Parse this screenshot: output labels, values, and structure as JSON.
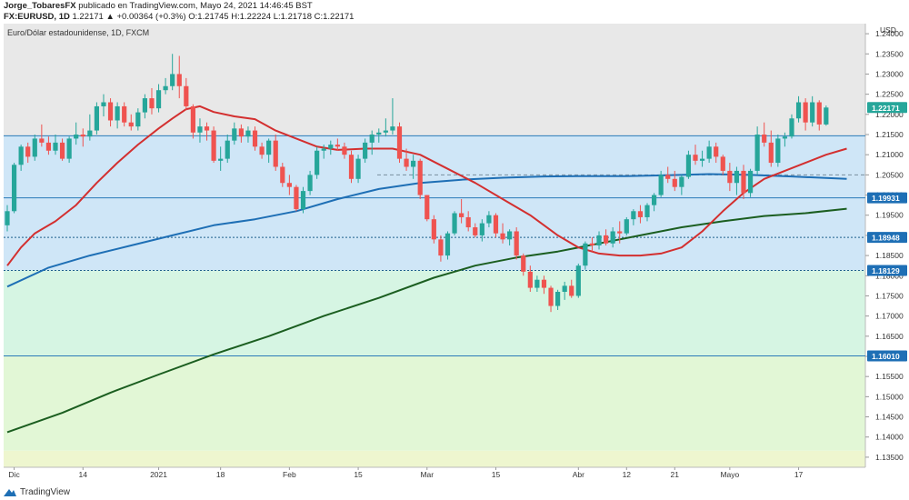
{
  "header": {
    "author": "Jorge_TobaresFX",
    "published": "publicado en TradingView.com, Mayo 24, 2021 14:46:45 BST",
    "symbol": "FX:EURUSD, 1D",
    "change": "1.22171  ▲ +0.00364 (+0.3%)",
    "open_label": "O:",
    "open": "1.21745",
    "high_label": "H:",
    "high": "1.22224",
    "low_label": "L:",
    "low": "1.21718",
    "close_label": "C:",
    "close": "1.22171"
  },
  "footer": {
    "brand": "TradingView"
  },
  "colors": {
    "bull": "#26a69a",
    "bear": "#ef5350",
    "ma_fast": "#d32f2f",
    "ma_mid": "#1e6fb5",
    "ma_slow": "#1b5e20",
    "zone_blue": "#cfe6f7",
    "zone_green": "#d6f5e3",
    "zone_green2": "#e2f7d6",
    "zone_yellow": "#eef6cf",
    "top_gray": "#e8e8e8"
  },
  "chart_data": {
    "type": "candlestick",
    "title": "Euro/Dólar estadounidense, 1D, FXCM",
    "currency": "USD",
    "ylim": [
      1.1325,
      1.2425
    ],
    "y_ticks": [
      "1.24000",
      "1.23500",
      "1.23000",
      "1.22500",
      "1.22000",
      "1.21500",
      "1.21000",
      "1.20500",
      "1.20000",
      "1.19500",
      "1.19000",
      "1.18500",
      "1.18000",
      "1.17500",
      "1.17000",
      "1.16500",
      "1.16000",
      "1.15500",
      "1.15000",
      "1.14500",
      "1.14000",
      "1.13500"
    ],
    "x_ticks": [
      {
        "label": "Dic",
        "i": 1
      },
      {
        "label": "14",
        "i": 11
      },
      {
        "label": "2021",
        "i": 22
      },
      {
        "label": "18",
        "i": 31
      },
      {
        "label": "Feb",
        "i": 41
      },
      {
        "label": "15",
        "i": 51
      },
      {
        "label": "Mar",
        "i": 61
      },
      {
        "label": "15",
        "i": 71
      },
      {
        "label": "Abr",
        "i": 83
      },
      {
        "label": "12",
        "i": 90
      },
      {
        "label": "21",
        "i": 97
      },
      {
        "label": "Mayo",
        "i": 105
      },
      {
        "label": "17",
        "i": 115
      }
    ],
    "levels": [
      {
        "value": 1.2217,
        "label": "1.22171",
        "kind": "price"
      },
      {
        "value": 1.1993,
        "label": "1.19931",
        "kind": "line"
      },
      {
        "value": 1.1895,
        "label": "1.18948",
        "kind": "dotted"
      },
      {
        "value": 1.1813,
        "label": "1.18129",
        "kind": "dotted"
      },
      {
        "value": 1.1601,
        "label": "1.16010",
        "kind": "line"
      }
    ],
    "zones": [
      {
        "from": 1.2147,
        "to": 1.1813,
        "name": "zone_blue"
      },
      {
        "from": 1.1813,
        "to": 1.1601,
        "name": "zone_green"
      },
      {
        "from": 1.1601,
        "to": 1.1366,
        "name": "zone_green2"
      },
      {
        "from": 1.1366,
        "to": 1.1325,
        "name": "zone_yellow"
      }
    ],
    "candles": [
      [
        1.1925,
        1.1975,
        1.191,
        1.196
      ],
      [
        1.196,
        1.208,
        1.1955,
        1.2075
      ],
      [
        1.2075,
        1.2125,
        1.206,
        1.212
      ],
      [
        1.212,
        1.213,
        1.208,
        1.2095
      ],
      [
        1.2095,
        1.215,
        1.2085,
        1.214
      ],
      [
        1.214,
        1.2175,
        1.212,
        1.213
      ],
      [
        1.213,
        1.2145,
        1.21,
        1.211
      ],
      [
        1.211,
        1.215,
        1.21,
        1.213
      ],
      [
        1.213,
        1.214,
        1.2085,
        1.209
      ],
      [
        1.209,
        1.2145,
        1.208,
        1.214
      ],
      [
        1.214,
        1.218,
        1.2125,
        1.215
      ],
      [
        1.215,
        1.2165,
        1.212,
        1.2145
      ],
      [
        1.2145,
        1.22,
        1.2135,
        1.216
      ],
      [
        1.216,
        1.223,
        1.215,
        1.222
      ],
      [
        1.222,
        1.225,
        1.2195,
        1.223
      ],
      [
        1.223,
        1.224,
        1.217,
        1.2185
      ],
      [
        1.2185,
        1.223,
        1.2165,
        1.222
      ],
      [
        1.222,
        1.223,
        1.217,
        1.218
      ],
      [
        1.218,
        1.22,
        1.216,
        1.217
      ],
      [
        1.217,
        1.2215,
        1.216,
        1.2205
      ],
      [
        1.2205,
        1.225,
        1.219,
        1.224
      ],
      [
        1.224,
        1.2265,
        1.22,
        1.2215
      ],
      [
        1.2215,
        1.2275,
        1.2205,
        1.226
      ],
      [
        1.226,
        1.229,
        1.225,
        1.227
      ],
      [
        1.227,
        1.235,
        1.226,
        1.23
      ],
      [
        1.23,
        1.2345,
        1.224,
        1.227
      ],
      [
        1.227,
        1.229,
        1.221,
        1.222
      ],
      [
        1.222,
        1.2225,
        1.214,
        1.2155
      ],
      [
        1.2155,
        1.219,
        1.213,
        1.217
      ],
      [
        1.217,
        1.218,
        1.2135,
        1.216
      ],
      [
        1.216,
        1.217,
        1.208,
        1.2085
      ],
      [
        1.2085,
        1.212,
        1.206,
        1.209
      ],
      [
        1.209,
        1.215,
        1.208,
        1.2135
      ],
      [
        1.2135,
        1.218,
        1.2125,
        1.2165
      ],
      [
        1.2165,
        1.2175,
        1.213,
        1.2145
      ],
      [
        1.2145,
        1.217,
        1.213,
        1.216
      ],
      [
        1.216,
        1.217,
        1.211,
        1.212
      ],
      [
        1.212,
        1.213,
        1.209,
        1.21
      ],
      [
        1.21,
        1.214,
        1.208,
        1.2135
      ],
      [
        1.2135,
        1.215,
        1.206,
        1.207
      ],
      [
        1.207,
        1.208,
        1.202,
        1.203
      ],
      [
        1.203,
        1.205,
        1.2,
        1.202
      ],
      [
        1.202,
        1.2025,
        1.196,
        1.1965
      ],
      [
        1.1965,
        1.202,
        1.1955,
        1.201
      ],
      [
        1.201,
        1.206,
        1.2,
        1.205
      ],
      [
        1.205,
        1.212,
        1.204,
        1.211
      ],
      [
        1.211,
        1.2125,
        1.209,
        1.2115
      ],
      [
        1.2115,
        1.2135,
        1.21,
        1.2125
      ],
      [
        1.2125,
        1.214,
        1.211,
        1.212
      ],
      [
        1.212,
        1.213,
        1.209,
        1.21
      ],
      [
        1.21,
        1.211,
        1.203,
        1.204
      ],
      [
        1.204,
        1.21,
        1.203,
        1.209
      ],
      [
        1.209,
        1.214,
        1.208,
        1.213
      ],
      [
        1.213,
        1.216,
        1.21,
        1.215
      ],
      [
        1.215,
        1.2165,
        1.213,
        1.2155
      ],
      [
        1.2155,
        1.219,
        1.2145,
        1.216
      ],
      [
        1.216,
        1.224,
        1.215,
        1.217
      ],
      [
        1.217,
        1.218,
        1.208,
        1.209
      ],
      [
        1.209,
        1.2115,
        1.206,
        1.207
      ],
      [
        1.207,
        1.21,
        1.204,
        1.2085
      ],
      [
        1.2085,
        1.209,
        1.199,
        1.2
      ],
      [
        1.2,
        1.2,
        1.1935,
        1.194
      ],
      [
        1.194,
        1.195,
        1.188,
        1.189
      ],
      [
        1.189,
        1.19,
        1.1835,
        1.185
      ],
      [
        1.185,
        1.191,
        1.184,
        1.1905
      ],
      [
        1.1905,
        1.196,
        1.19,
        1.1955
      ],
      [
        1.1955,
        1.199,
        1.193,
        1.1945
      ],
      [
        1.1945,
        1.196,
        1.191,
        1.192
      ],
      [
        1.192,
        1.193,
        1.1895,
        1.19
      ],
      [
        1.19,
        1.194,
        1.1885,
        1.193
      ],
      [
        1.193,
        1.196,
        1.192,
        1.195
      ],
      [
        1.195,
        1.1955,
        1.1895,
        1.1905
      ],
      [
        1.1905,
        1.193,
        1.188,
        1.189
      ],
      [
        1.189,
        1.1915,
        1.1875,
        1.191
      ],
      [
        1.191,
        1.192,
        1.184,
        1.185
      ],
      [
        1.185,
        1.1855,
        1.18,
        1.181
      ],
      [
        1.181,
        1.1825,
        1.176,
        1.177
      ],
      [
        1.177,
        1.18,
        1.176,
        1.179
      ],
      [
        1.179,
        1.18,
        1.1755,
        1.177
      ],
      [
        1.177,
        1.1775,
        1.171,
        1.1725
      ],
      [
        1.1725,
        1.1765,
        1.1715,
        1.176
      ],
      [
        1.176,
        1.1785,
        1.174,
        1.1775
      ],
      [
        1.1775,
        1.179,
        1.1745,
        1.175
      ],
      [
        1.175,
        1.183,
        1.1745,
        1.1825
      ],
      [
        1.1825,
        1.1885,
        1.1815,
        1.188
      ],
      [
        1.188,
        1.1895,
        1.186,
        1.1875
      ],
      [
        1.1875,
        1.191,
        1.1865,
        1.19
      ],
      [
        1.19,
        1.1915,
        1.1875,
        1.188
      ],
      [
        1.188,
        1.192,
        1.187,
        1.191
      ],
      [
        1.191,
        1.1935,
        1.188,
        1.1905
      ],
      [
        1.1905,
        1.1945,
        1.19,
        1.194
      ],
      [
        1.194,
        1.1965,
        1.1925,
        1.196
      ],
      [
        1.196,
        1.1975,
        1.193,
        1.1945
      ],
      [
        1.1945,
        1.198,
        1.1935,
        1.1975
      ],
      [
        1.1975,
        1.2005,
        1.196,
        1.2
      ],
      [
        1.2,
        1.206,
        1.1995,
        1.205
      ],
      [
        1.205,
        1.207,
        1.203,
        1.204
      ],
      [
        1.204,
        1.206,
        1.201,
        1.202
      ],
      [
        1.202,
        1.205,
        1.2,
        1.2045
      ],
      [
        1.2045,
        1.211,
        1.204,
        1.21
      ],
      [
        1.21,
        1.2125,
        1.2075,
        1.2085
      ],
      [
        1.2085,
        1.211,
        1.207,
        1.209
      ],
      [
        1.209,
        1.2135,
        1.208,
        1.212
      ],
      [
        1.212,
        1.213,
        1.208,
        1.2095
      ],
      [
        1.2095,
        1.21,
        1.205,
        1.206
      ],
      [
        1.206,
        1.208,
        1.201,
        1.203
      ],
      [
        1.203,
        1.207,
        1.2,
        1.206
      ],
      [
        1.206,
        1.2075,
        1.199,
        1.2005
      ],
      [
        1.2005,
        1.2065,
        1.1995,
        1.206
      ],
      [
        1.206,
        1.217,
        1.205,
        1.215
      ],
      [
        1.215,
        1.218,
        1.212,
        1.213
      ],
      [
        1.213,
        1.216,
        1.207,
        1.208
      ],
      [
        1.208,
        1.215,
        1.207,
        1.214
      ],
      [
        1.214,
        1.2155,
        1.212,
        1.2145
      ],
      [
        1.2145,
        1.22,
        1.214,
        1.219
      ],
      [
        1.219,
        1.2245,
        1.218,
        1.223
      ],
      [
        1.223,
        1.224,
        1.216,
        1.218
      ],
      [
        1.218,
        1.2245,
        1.217,
        1.223
      ],
      [
        1.223,
        1.2235,
        1.216,
        1.2175
      ],
      [
        1.2175,
        1.2222,
        1.2172,
        1.2217
      ]
    ],
    "ma_fast": [
      [
        0,
        1.1825
      ],
      [
        2,
        1.187
      ],
      [
        4,
        1.1905
      ],
      [
        7,
        1.1935
      ],
      [
        10,
        1.1975
      ],
      [
        13,
        1.203
      ],
      [
        16,
        1.208
      ],
      [
        19,
        1.2125
      ],
      [
        22,
        1.2165
      ],
      [
        24,
        1.219
      ],
      [
        26,
        1.2213
      ],
      [
        28,
        1.222
      ],
      [
        30,
        1.2206
      ],
      [
        33,
        1.2195
      ],
      [
        36,
        1.2188
      ],
      [
        39,
        1.216
      ],
      [
        42,
        1.214
      ],
      [
        45,
        1.212
      ],
      [
        48,
        1.2112
      ],
      [
        52,
        1.2115
      ],
      [
        56,
        1.2115
      ],
      [
        60,
        1.21
      ],
      [
        64,
        1.2065
      ],
      [
        68,
        1.203
      ],
      [
        72,
        1.199
      ],
      [
        76,
        1.195
      ],
      [
        80,
        1.19
      ],
      [
        83,
        1.187
      ],
      [
        86,
        1.1855
      ],
      [
        89,
        1.185
      ],
      [
        92,
        1.185
      ],
      [
        95,
        1.1855
      ],
      [
        98,
        1.187
      ],
      [
        101,
        1.191
      ],
      [
        104,
        1.196
      ],
      [
        107,
        1.2005
      ],
      [
        110,
        1.204
      ],
      [
        113,
        1.206
      ],
      [
        116,
        1.208
      ],
      [
        119,
        1.21
      ],
      [
        122,
        1.2115
      ]
    ],
    "ma_mid": [
      [
        0,
        1.1773
      ],
      [
        6,
        1.182
      ],
      [
        12,
        1.185
      ],
      [
        18,
        1.1875
      ],
      [
        24,
        1.19
      ],
      [
        30,
        1.1925
      ],
      [
        36,
        1.194
      ],
      [
        42,
        1.196
      ],
      [
        48,
        1.199
      ],
      [
        54,
        1.2015
      ],
      [
        60,
        1.203
      ],
      [
        66,
        1.2038
      ],
      [
        72,
        1.2043
      ],
      [
        78,
        1.2046
      ],
      [
        84,
        1.2047
      ],
      [
        90,
        1.2047
      ],
      [
        96,
        1.2049
      ],
      [
        102,
        1.2052
      ],
      [
        108,
        1.205
      ],
      [
        114,
        1.2046
      ],
      [
        122,
        1.204
      ]
    ],
    "ma_slow": [
      [
        0,
        1.1412
      ],
      [
        8,
        1.146
      ],
      [
        15,
        1.151
      ],
      [
        22,
        1.1555
      ],
      [
        30,
        1.1605
      ],
      [
        38,
        1.165
      ],
      [
        46,
        1.17
      ],
      [
        54,
        1.1745
      ],
      [
        62,
        1.1795
      ],
      [
        68,
        1.1825
      ],
      [
        74,
        1.1845
      ],
      [
        80,
        1.186
      ],
      [
        86,
        1.188
      ],
      [
        92,
        1.19
      ],
      [
        98,
        1.192
      ],
      [
        104,
        1.1935
      ],
      [
        110,
        1.1948
      ],
      [
        116,
        1.1955
      ],
      [
        122,
        1.1966
      ]
    ]
  }
}
